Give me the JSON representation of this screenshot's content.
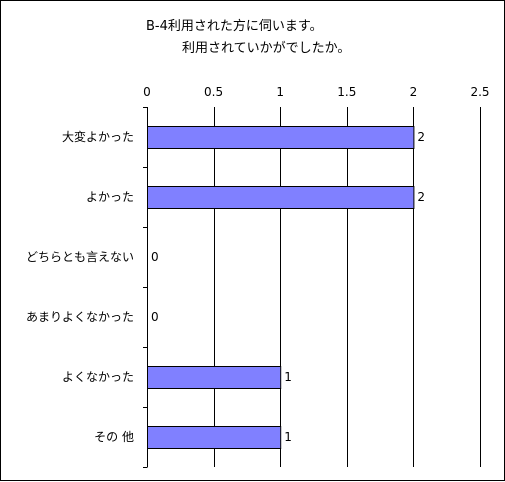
{
  "chart_data": {
    "type": "bar",
    "orientation": "horizontal",
    "title_lines": [
      "B-4利用された方に伺います。",
      "利用されていかがでしたか。"
    ],
    "categories": [
      "大変よかった",
      "よかった",
      "どちらとも言えない",
      "あまりよくなかった",
      "よくなかった",
      "その 他"
    ],
    "values": [
      2,
      2,
      0,
      0,
      1,
      1
    ],
    "data_labels": [
      "2",
      "2",
      "0",
      "0",
      "1",
      "1"
    ],
    "xlim": [
      0,
      2.5
    ],
    "x_ticks": [
      "0",
      "0.5",
      "1",
      "1.5",
      "2",
      "2.5"
    ],
    "x_tick_values": [
      0,
      0.5,
      1,
      1.5,
      2,
      2.5
    ],
    "x_axis_position": "top",
    "grid": "vertical",
    "legend": "none",
    "bar_color": "#8080ff",
    "bar_edge_color": "#000000"
  }
}
